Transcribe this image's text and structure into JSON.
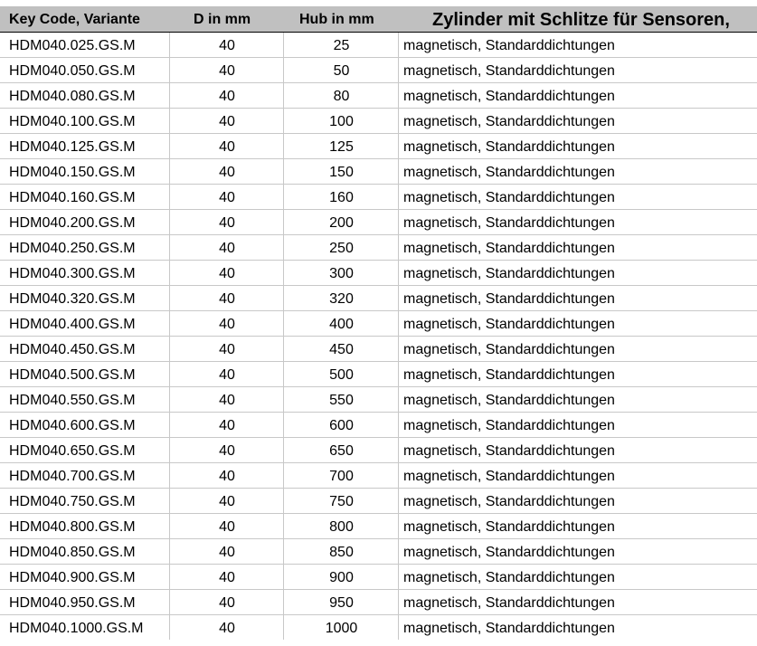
{
  "header": {
    "key_code": "Key Code, Variante",
    "d": "D in mm",
    "hub": "Hub in mm",
    "description": "Zylinder mit Schlitze für Sensoren,"
  },
  "rows": [
    {
      "code": "HDM040.025.GS.M",
      "d": "40",
      "hub": "25",
      "desc": "magnetisch, Standarddichtungen"
    },
    {
      "code": "HDM040.050.GS.M",
      "d": "40",
      "hub": "50",
      "desc": "magnetisch, Standarddichtungen"
    },
    {
      "code": "HDM040.080.GS.M",
      "d": "40",
      "hub": "80",
      "desc": "magnetisch, Standarddichtungen"
    },
    {
      "code": "HDM040.100.GS.M",
      "d": "40",
      "hub": "100",
      "desc": "magnetisch, Standarddichtungen"
    },
    {
      "code": "HDM040.125.GS.M",
      "d": "40",
      "hub": "125",
      "desc": "magnetisch, Standarddichtungen"
    },
    {
      "code": "HDM040.150.GS.M",
      "d": "40",
      "hub": "150",
      "desc": "magnetisch, Standarddichtungen"
    },
    {
      "code": "HDM040.160.GS.M",
      "d": "40",
      "hub": "160",
      "desc": "magnetisch, Standarddichtungen"
    },
    {
      "code": "HDM040.200.GS.M",
      "d": "40",
      "hub": "200",
      "desc": "magnetisch, Standarddichtungen"
    },
    {
      "code": "HDM040.250.GS.M",
      "d": "40",
      "hub": "250",
      "desc": "magnetisch, Standarddichtungen"
    },
    {
      "code": "HDM040.300.GS.M",
      "d": "40",
      "hub": "300",
      "desc": "magnetisch, Standarddichtungen"
    },
    {
      "code": "HDM040.320.GS.M",
      "d": "40",
      "hub": "320",
      "desc": "magnetisch, Standarddichtungen"
    },
    {
      "code": "HDM040.400.GS.M",
      "d": "40",
      "hub": "400",
      "desc": "magnetisch, Standarddichtungen"
    },
    {
      "code": "HDM040.450.GS.M",
      "d": "40",
      "hub": "450",
      "desc": "magnetisch, Standarddichtungen"
    },
    {
      "code": "HDM040.500.GS.M",
      "d": "40",
      "hub": "500",
      "desc": "magnetisch, Standarddichtungen"
    },
    {
      "code": "HDM040.550.GS.M",
      "d": "40",
      "hub": "550",
      "desc": "magnetisch, Standarddichtungen"
    },
    {
      "code": "HDM040.600.GS.M",
      "d": "40",
      "hub": "600",
      "desc": "magnetisch, Standarddichtungen"
    },
    {
      "code": "HDM040.650.GS.M",
      "d": "40",
      "hub": "650",
      "desc": "magnetisch, Standarddichtungen"
    },
    {
      "code": "HDM040.700.GS.M",
      "d": "40",
      "hub": "700",
      "desc": "magnetisch, Standarddichtungen"
    },
    {
      "code": "HDM040.750.GS.M",
      "d": "40",
      "hub": "750",
      "desc": "magnetisch, Standarddichtungen"
    },
    {
      "code": "HDM040.800.GS.M",
      "d": "40",
      "hub": "800",
      "desc": "magnetisch, Standarddichtungen"
    },
    {
      "code": "HDM040.850.GS.M",
      "d": "40",
      "hub": "850",
      "desc": "magnetisch, Standarddichtungen"
    },
    {
      "code": "HDM040.900.GS.M",
      "d": "40",
      "hub": "900",
      "desc": "magnetisch, Standarddichtungen"
    },
    {
      "code": "HDM040.950.GS.M",
      "d": "40",
      "hub": "950",
      "desc": "magnetisch, Standarddichtungen"
    },
    {
      "code": "HDM040.1000.GS.M",
      "d": "40",
      "hub": "1000",
      "desc": "magnetisch, Standarddichtungen"
    }
  ]
}
